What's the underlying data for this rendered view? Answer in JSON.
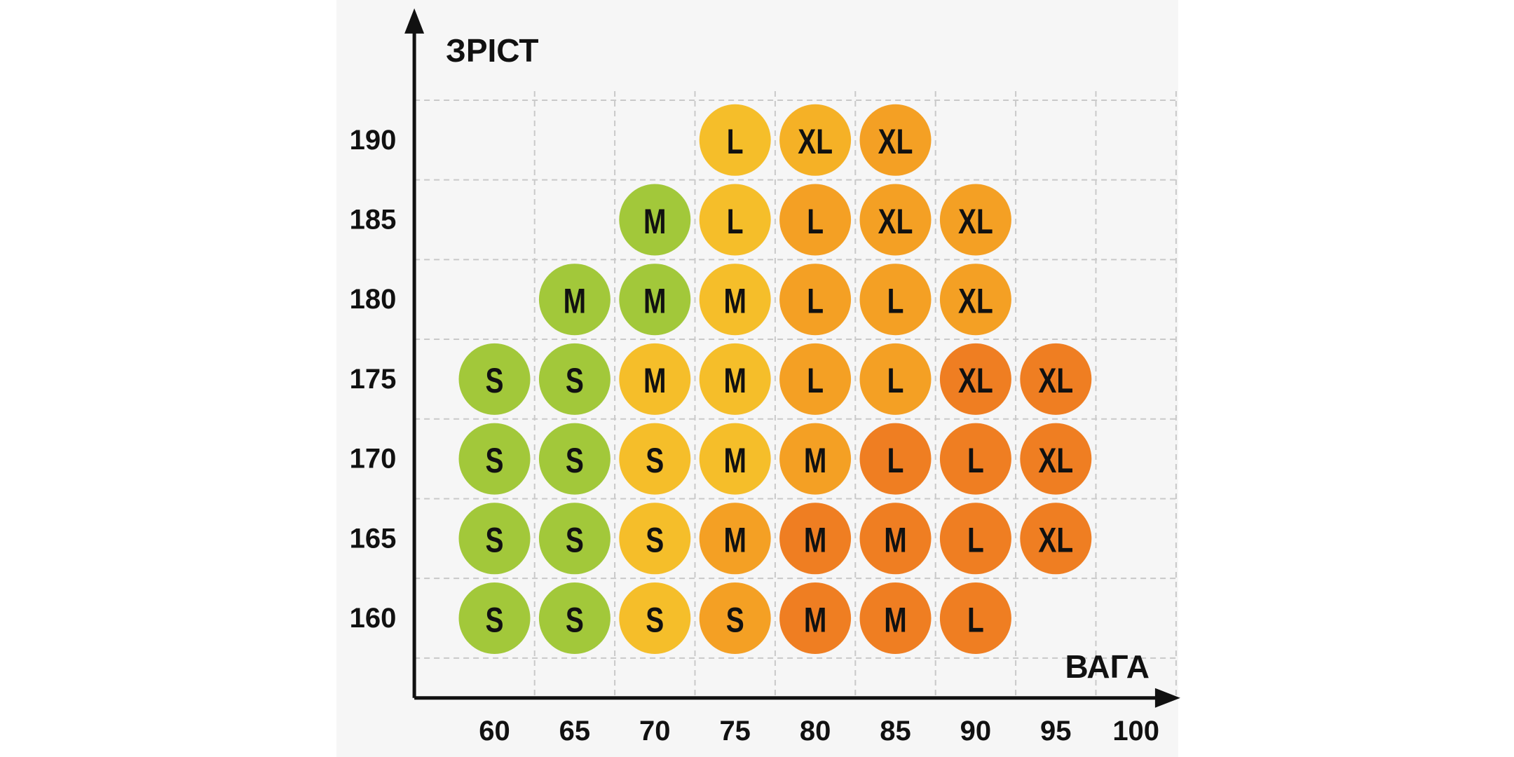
{
  "chart_data": {
    "type": "scatter",
    "y_label": "ЗРІСТ",
    "x_label": "ВАГА",
    "xlim": [
      55,
      102.5
    ],
    "ylim": [
      155,
      198
    ],
    "xticks": [
      60,
      65,
      70,
      75,
      80,
      85,
      90,
      95,
      100
    ],
    "yticks": [
      160,
      165,
      170,
      175,
      180,
      185,
      190
    ],
    "grid": true,
    "points": [
      {
        "x": 75,
        "y": 190,
        "label": "L",
        "color": "#f5be2a"
      },
      {
        "x": 80,
        "y": 190,
        "label": "XL",
        "color": "#f5b126"
      },
      {
        "x": 85,
        "y": 190,
        "label": "XL",
        "color": "#f4a024"
      },
      {
        "x": 70,
        "y": 185,
        "label": "M",
        "color": "#a2c83a"
      },
      {
        "x": 75,
        "y": 185,
        "label": "L",
        "color": "#f5be2a"
      },
      {
        "x": 80,
        "y": 185,
        "label": "L",
        "color": "#f4a024"
      },
      {
        "x": 85,
        "y": 185,
        "label": "XL",
        "color": "#f4a024"
      },
      {
        "x": 90,
        "y": 185,
        "label": "XL",
        "color": "#f4a024"
      },
      {
        "x": 65,
        "y": 180,
        "label": "M",
        "color": "#a2c83a"
      },
      {
        "x": 70,
        "y": 180,
        "label": "M",
        "color": "#a2c83a"
      },
      {
        "x": 75,
        "y": 180,
        "label": "M",
        "color": "#f5be2a"
      },
      {
        "x": 80,
        "y": 180,
        "label": "L",
        "color": "#f4a024"
      },
      {
        "x": 85,
        "y": 180,
        "label": "L",
        "color": "#f4a024"
      },
      {
        "x": 90,
        "y": 180,
        "label": "XL",
        "color": "#f4a024"
      },
      {
        "x": 60,
        "y": 175,
        "label": "S",
        "color": "#a2c83a"
      },
      {
        "x": 65,
        "y": 175,
        "label": "S",
        "color": "#a2c83a"
      },
      {
        "x": 70,
        "y": 175,
        "label": "M",
        "color": "#f5be2a"
      },
      {
        "x": 75,
        "y": 175,
        "label": "M",
        "color": "#f5be2a"
      },
      {
        "x": 80,
        "y": 175,
        "label": "L",
        "color": "#f4a024"
      },
      {
        "x": 85,
        "y": 175,
        "label": "L",
        "color": "#f4a024"
      },
      {
        "x": 90,
        "y": 175,
        "label": "XL",
        "color": "#ef7e22"
      },
      {
        "x": 95,
        "y": 175,
        "label": "XL",
        "color": "#ef7e22"
      },
      {
        "x": 60,
        "y": 170,
        "label": "S",
        "color": "#a2c83a"
      },
      {
        "x": 65,
        "y": 170,
        "label": "S",
        "color": "#a2c83a"
      },
      {
        "x": 70,
        "y": 170,
        "label": "S",
        "color": "#f5be2a"
      },
      {
        "x": 75,
        "y": 170,
        "label": "M",
        "color": "#f5be2a"
      },
      {
        "x": 80,
        "y": 170,
        "label": "M",
        "color": "#f4a024"
      },
      {
        "x": 85,
        "y": 170,
        "label": "L",
        "color": "#ef7e22"
      },
      {
        "x": 90,
        "y": 170,
        "label": "L",
        "color": "#ef7e22"
      },
      {
        "x": 95,
        "y": 170,
        "label": "XL",
        "color": "#ef7e22"
      },
      {
        "x": 60,
        "y": 165,
        "label": "S",
        "color": "#a2c83a"
      },
      {
        "x": 65,
        "y": 165,
        "label": "S",
        "color": "#a2c83a"
      },
      {
        "x": 70,
        "y": 165,
        "label": "S",
        "color": "#f5be2a"
      },
      {
        "x": 75,
        "y": 165,
        "label": "M",
        "color": "#f4a024"
      },
      {
        "x": 80,
        "y": 165,
        "label": "M",
        "color": "#ef7e22"
      },
      {
        "x": 85,
        "y": 165,
        "label": "M",
        "color": "#ef7e22"
      },
      {
        "x": 90,
        "y": 165,
        "label": "L",
        "color": "#ef7e22"
      },
      {
        "x": 95,
        "y": 165,
        "label": "XL",
        "color": "#ef7e22"
      },
      {
        "x": 60,
        "y": 160,
        "label": "S",
        "color": "#a2c83a"
      },
      {
        "x": 65,
        "y": 160,
        "label": "S",
        "color": "#a2c83a"
      },
      {
        "x": 70,
        "y": 160,
        "label": "S",
        "color": "#f5be2a"
      },
      {
        "x": 75,
        "y": 160,
        "label": "S",
        "color": "#f4a024"
      },
      {
        "x": 80,
        "y": 160,
        "label": "M",
        "color": "#ef7e22"
      },
      {
        "x": 85,
        "y": 160,
        "label": "M",
        "color": "#ef7e22"
      },
      {
        "x": 90,
        "y": 160,
        "label": "L",
        "color": "#ef7e22"
      }
    ]
  }
}
